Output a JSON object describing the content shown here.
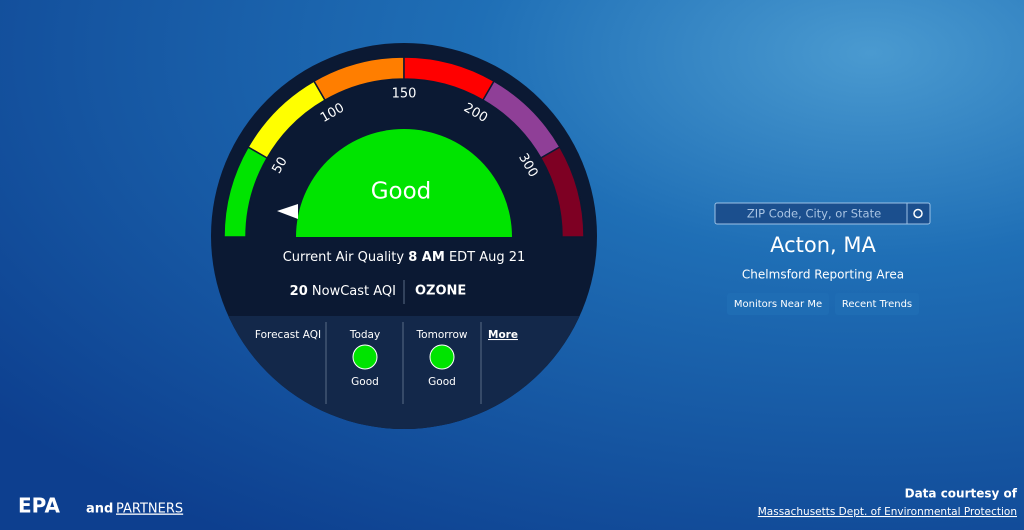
{
  "gauge": {
    "ticks": [
      50,
      100,
      150,
      200,
      300
    ],
    "category": "Good"
  },
  "current": {
    "label": "Current Air Quality",
    "time": "8 AM",
    "date": "EDT Aug 21",
    "aqi": 20,
    "aqi_label": "NowCast AQI",
    "pollutant": "OZONE"
  },
  "forecast": {
    "title": "Forecast AQI",
    "days": [
      {
        "day": "Today",
        "category": "Good"
      },
      {
        "day": "Tomorrow",
        "category": "Good"
      }
    ],
    "more": "More"
  },
  "search": {
    "placeholder": "ZIP Code, City, or State"
  },
  "location": {
    "city": "Acton, MA",
    "area": "Chelmsford Reporting Area"
  },
  "buttons": [
    "Monitors Near Me",
    "Recent Trends"
  ],
  "footer": {
    "logo": "EPA",
    "and": "and",
    "partners": "PARTNERS",
    "credit": "Data courtesy of",
    "source": "Massachusetts Dept. of Environmental Protection"
  }
}
